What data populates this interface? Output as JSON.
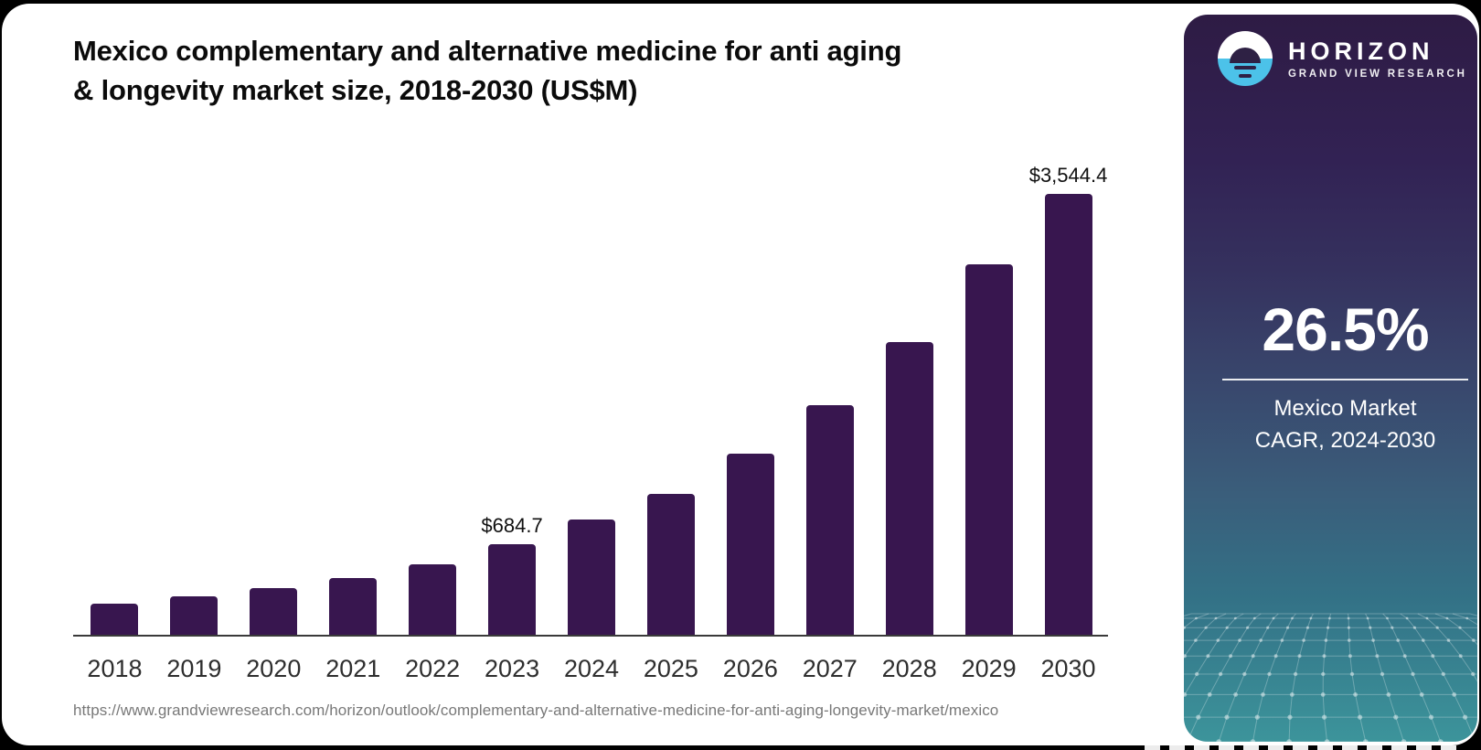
{
  "header": {
    "title": "Mexico complementary and alternative medicine for anti aging & longevity market size, 2018-2030 (US$M)",
    "title_lines": [
      "Mexico complementary and alternative medicine for anti aging",
      "& longevity market size, 2018-2030 (US$M)"
    ]
  },
  "source_url": "https://www.grandviewresearch.com/horizon/outlook/complementary-and-alternative-medicine-for-anti-aging-longevity-market/mexico",
  "sidebar": {
    "logo": {
      "brand": "HORIZON",
      "sub_brand": "GRAND VIEW RESEARCH",
      "icon": "horizon-sun-logo",
      "icon_blue": "#4CC2E9",
      "icon_dark": "#2E2144"
    },
    "stat": {
      "value": "26.5%",
      "label_line1": "Mexico Market",
      "label_line2": "CAGR, 2024-2030"
    },
    "gradient_top": "#2E1B44",
    "gradient_bottom": "#3C949B"
  },
  "chart_data": {
    "type": "bar",
    "title": "Mexico complementary and alternative medicine for anti aging & longevity market size, 2018-2030 (US$M)",
    "unit": "US$M",
    "categories": [
      "2018",
      "2019",
      "2020",
      "2021",
      "2022",
      "2023",
      "2024",
      "2025",
      "2026",
      "2027",
      "2028",
      "2029",
      "2030"
    ],
    "values": [
      235,
      290,
      352,
      424,
      530,
      684.7,
      865.3,
      1060,
      1360,
      1730,
      2200,
      2790,
      3544.4
    ],
    "data_labels": {
      "2023": "$684.7",
      "2030": "$3,544.4"
    },
    "xlabel": "",
    "ylabel": "",
    "ylim": [
      0,
      3544.4
    ],
    "grid": false,
    "legend": "none",
    "bar_color": "#38164F"
  }
}
